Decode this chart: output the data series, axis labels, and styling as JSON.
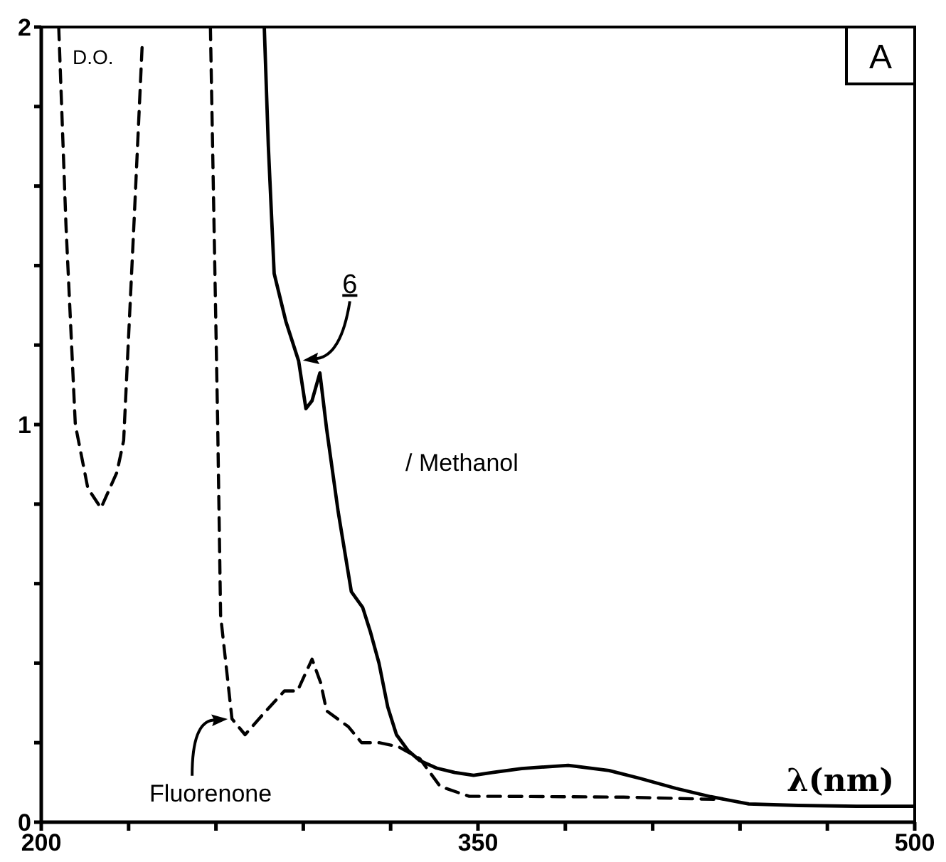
{
  "chart_data": {
    "type": "line",
    "title": "A",
    "ylabel": "D.O.",
    "xlabel": "λ(nm)",
    "annotations": [
      "/ Methanol"
    ],
    "xlim": [
      200,
      500
    ],
    "ylim": [
      0,
      2
    ],
    "xticks": [
      200,
      {
        "value": 230,
        "label": null
      },
      {
        "value": 260,
        "label": null
      },
      {
        "value": 290,
        "label": null
      },
      {
        "value": 320,
        "label": null
      },
      350,
      {
        "value": 380,
        "label": null
      },
      {
        "value": 410,
        "label": null
      },
      {
        "value": 440,
        "label": null
      },
      {
        "value": 470,
        "label": null
      },
      500
    ],
    "yticks": [
      0,
      {
        "value": 0.2,
        "label": null
      },
      {
        "value": 0.4,
        "label": null
      },
      {
        "value": 0.6,
        "label": null
      },
      {
        "value": 0.8,
        "label": null
      },
      1,
      {
        "value": 1.2,
        "label": null
      },
      {
        "value": 1.4,
        "label": null
      },
      {
        "value": 1.6,
        "label": null
      },
      {
        "value": 1.8,
        "label": null
      },
      2
    ],
    "grid": false,
    "legend": false,
    "marker": "none",
    "series": [
      {
        "name": "6",
        "color": "#000000",
        "line_style": "solid",
        "x": [
          276.6,
          278,
          280,
          284,
          288.4,
          290.9,
          293,
          295.7,
          298,
          302,
          306.5,
          310.4,
          313,
          316,
          319,
          322,
          326,
          330,
          335.8,
          342,
          348.5,
          355,
          365,
          381,
          395,
          405.7,
          418,
          430,
          443,
          460,
          480,
          500
        ],
        "values": [
          2,
          1.7,
          1.38,
          1.26,
          1.16,
          1.04,
          1.06,
          1.13,
          0.99,
          0.78,
          0.58,
          0.54,
          0.48,
          0.4,
          0.29,
          0.22,
          0.18,
          0.155,
          0.136,
          0.125,
          0.118,
          0.125,
          0.135,
          0.143,
          0.13,
          0.11,
          0.085,
          0.064,
          0.046,
          0.042,
          0.04,
          0.04
        ]
      },
      {
        "name": "Fluorenone",
        "color": "#000000",
        "line_style": "dashed",
        "x": [
          206,
          208.5,
          211.7,
          216,
          220.5,
          226,
          228.3,
          232,
          234.7,
          246,
          258.1,
          260.6,
          261.6,
          265.5,
          270,
          276,
          283.5,
          288,
          293,
          296,
          298,
          305.5,
          310,
          316,
          322.6,
          330,
          337,
          347,
          360,
          400,
          433.5
        ],
        "values": [
          2,
          1.5,
          1.0,
          0.84,
          0.79,
          0.88,
          0.96,
          1.53,
          1.96,
          null,
          2,
          1.0,
          0.52,
          0.26,
          0.22,
          0.27,
          0.33,
          0.33,
          0.41,
          0.35,
          0.28,
          0.24,
          0.2,
          0.2,
          0.19,
          0.16,
          0.09,
          0.065,
          0.065,
          0.063,
          0.057
        ]
      }
    ]
  }
}
